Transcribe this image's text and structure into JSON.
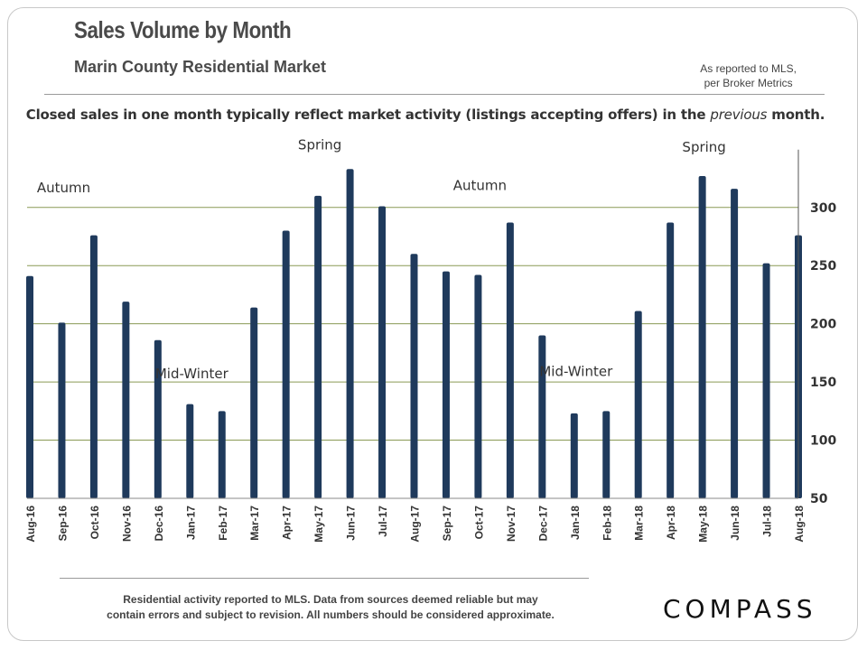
{
  "header": {
    "title": "Sales Volume by Month",
    "subtitle": "Marin County Residential Market",
    "source_line1": "As reported to MLS,",
    "source_line2": "per Broker Metrics",
    "caption_before": "Closed sales in one month typically reflect market activity (listings accepting offers) in the ",
    "caption_em": "previous",
    "caption_after": " month."
  },
  "chart_data": {
    "type": "bar",
    "categories": [
      "Aug-16",
      "Sep-16",
      "Oct-16",
      "Nov-16",
      "Dec-16",
      "Jan-17",
      "Feb-17",
      "Mar-17",
      "Apr-17",
      "May-17",
      "Jun-17",
      "Jul-17",
      "Aug-17",
      "Sep-17",
      "Oct-17",
      "Nov-17",
      "Dec-17",
      "Jan-18",
      "Feb-18",
      "Mar-18",
      "Apr-18",
      "May-18",
      "Jun-18",
      "Jul-18",
      "Aug-18"
    ],
    "values": [
      241,
      201,
      276,
      219,
      186,
      131,
      125,
      214,
      280,
      310,
      333,
      301,
      260,
      245,
      242,
      287,
      190,
      123,
      125,
      211,
      287,
      327,
      316,
      252,
      276
    ],
    "ylim": [
      50,
      345
    ],
    "yticks": [
      50,
      100,
      150,
      200,
      250,
      300
    ],
    "y_axis_side": "right",
    "grid": true,
    "bar_color": "#1f3a5c",
    "annotations": [
      {
        "text": "Autumn",
        "category": "Sep-16",
        "value": 313
      },
      {
        "text": "Mid-Winter",
        "category": "Jan-17",
        "value": 153
      },
      {
        "text": "Spring",
        "category": "May-17",
        "value": 350
      },
      {
        "text": "Autumn",
        "category": "Oct-17",
        "value": 315
      },
      {
        "text": "Mid-Winter",
        "category": "Jan-18",
        "value": 155
      },
      {
        "text": "Spring",
        "category": "May-18",
        "value": 348
      }
    ]
  },
  "footer": {
    "line1": "Residential activity reported to MLS. Data from sources deemed reliable but may",
    "line2": "contain errors and subject to revision. All numbers should be considered approximate.",
    "logo": "COMPASS"
  }
}
